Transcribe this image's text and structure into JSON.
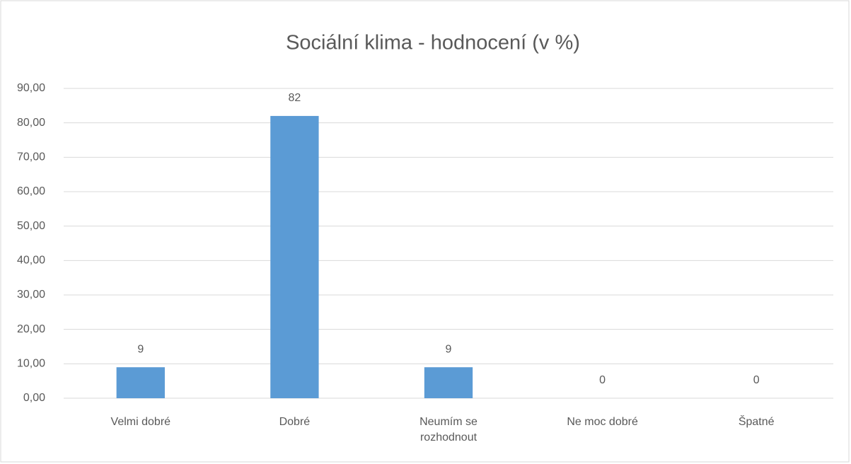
{
  "chart_data": {
    "type": "bar",
    "title": "Sociální klima - hodnocení (v %)",
    "categories": [
      "Velmi dobré",
      "Dobré",
      "Neumím se rozhodnout",
      "Ne moc dobré",
      "Špatné"
    ],
    "values": [
      9,
      82,
      9,
      0,
      0
    ],
    "color": "#5b9bd5",
    "ylim": [
      0,
      90
    ],
    "yticks": [
      {
        "value": 0,
        "label": "0,00"
      },
      {
        "value": 10,
        "label": "10,00"
      },
      {
        "value": 20,
        "label": "20,00"
      },
      {
        "value": 30,
        "label": "30,00"
      },
      {
        "value": 40,
        "label": "40,00"
      },
      {
        "value": 50,
        "label": "50,00"
      },
      {
        "value": 60,
        "label": "60,00"
      },
      {
        "value": 70,
        "label": "70,00"
      },
      {
        "value": 80,
        "label": "80,00"
      },
      {
        "value": 90,
        "label": "90,00"
      }
    ],
    "grid": true,
    "data_labels": true
  }
}
